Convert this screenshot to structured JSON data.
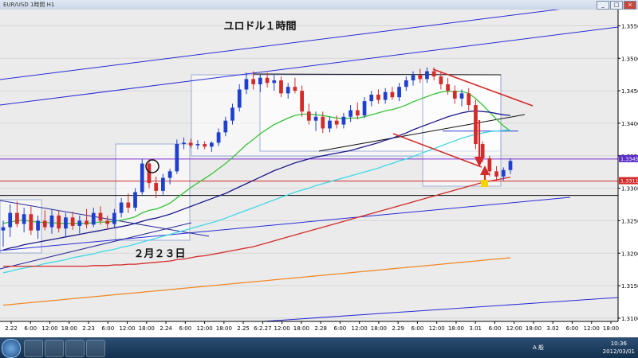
{
  "window": {
    "title": "EUR/USD 1時間 H1"
  },
  "chart_data": {
    "type": "candlestick",
    "title": "ユロドル１時間",
    "annotation": "２月２３日",
    "y_ticks": [
      "1.3550",
      "1.3500",
      "1.3450",
      "1.3400",
      "1.3350",
      "1.3300",
      "1.3250",
      "1.3200",
      "1.3150",
      "1.3100"
    ],
    "ylim": [
      1.3095,
      1.3575
    ],
    "x_ticks": [
      "2.22",
      "6:00",
      "12:00",
      "18:00",
      "2.23",
      "6:00",
      "12:00",
      "18:00",
      "2.24",
      "6:00",
      "12:00",
      "18:00",
      "2.25",
      "6:2.27",
      "12:00",
      "18:00",
      "2.28",
      "6:00",
      "12:00",
      "18:00",
      "2.29",
      "6:00",
      "12:00",
      "18:00",
      "3.01",
      "6:00",
      "12:00",
      "18:00",
      "3.02",
      "6:00",
      "12:00",
      "18:00"
    ],
    "price_tags": [
      {
        "value": "1.3345",
        "color": "#5b2fc7"
      },
      {
        "value": "1.3311",
        "color": "#d42a2a"
      }
    ],
    "horizontal_lines": [
      {
        "y": 1.3345,
        "color": "#7d2fd0"
      },
      {
        "y": 1.3311,
        "color": "#d42a2a"
      },
      {
        "y": 1.3289,
        "color": "#000000"
      },
      {
        "y": 1.3388,
        "color": "#2f3fd0"
      }
    ],
    "candles": [
      {
        "o": 1.3235,
        "h": 1.325,
        "l": 1.321,
        "c": 1.324
      },
      {
        "o": 1.324,
        "h": 1.3275,
        "l": 1.3225,
        "c": 1.3262
      },
      {
        "o": 1.3262,
        "h": 1.328,
        "l": 1.324,
        "c": 1.3245
      },
      {
        "o": 1.3245,
        "h": 1.327,
        "l": 1.3232,
        "c": 1.326
      },
      {
        "o": 1.326,
        "h": 1.3272,
        "l": 1.3228,
        "c": 1.3235
      },
      {
        "o": 1.3235,
        "h": 1.3258,
        "l": 1.3222,
        "c": 1.325
      },
      {
        "o": 1.325,
        "h": 1.3266,
        "l": 1.3235,
        "c": 1.324
      },
      {
        "o": 1.324,
        "h": 1.3268,
        "l": 1.323,
        "c": 1.3258
      },
      {
        "o": 1.3258,
        "h": 1.3266,
        "l": 1.3232,
        "c": 1.3238
      },
      {
        "o": 1.3238,
        "h": 1.3262,
        "l": 1.3225,
        "c": 1.3255
      },
      {
        "o": 1.3255,
        "h": 1.3264,
        "l": 1.3236,
        "c": 1.3242
      },
      {
        "o": 1.3242,
        "h": 1.3258,
        "l": 1.323,
        "c": 1.325
      },
      {
        "o": 1.325,
        "h": 1.3268,
        "l": 1.3238,
        "c": 1.3244
      },
      {
        "o": 1.3244,
        "h": 1.327,
        "l": 1.324,
        "c": 1.3262
      },
      {
        "o": 1.3262,
        "h": 1.3272,
        "l": 1.3244,
        "c": 1.325
      },
      {
        "o": 1.325,
        "h": 1.3258,
        "l": 1.3236,
        "c": 1.3245
      },
      {
        "o": 1.3245,
        "h": 1.3268,
        "l": 1.324,
        "c": 1.3262
      },
      {
        "o": 1.3262,
        "h": 1.3285,
        "l": 1.3255,
        "c": 1.3278
      },
      {
        "o": 1.3278,
        "h": 1.3292,
        "l": 1.3262,
        "c": 1.327
      },
      {
        "o": 1.327,
        "h": 1.33,
        "l": 1.3265,
        "c": 1.3294
      },
      {
        "o": 1.3294,
        "h": 1.3345,
        "l": 1.329,
        "c": 1.3338
      },
      {
        "o": 1.3338,
        "h": 1.3345,
        "l": 1.33,
        "c": 1.3308
      },
      {
        "o": 1.3308,
        "h": 1.3318,
        "l": 1.3285,
        "c": 1.3296
      },
      {
        "o": 1.3296,
        "h": 1.3322,
        "l": 1.329,
        "c": 1.3316
      },
      {
        "o": 1.3316,
        "h": 1.333,
        "l": 1.3306,
        "c": 1.3326
      },
      {
        "o": 1.3326,
        "h": 1.3375,
        "l": 1.3322,
        "c": 1.3368
      },
      {
        "o": 1.3368,
        "h": 1.3378,
        "l": 1.336,
        "c": 1.337
      },
      {
        "o": 1.337,
        "h": 1.3376,
        "l": 1.3362,
        "c": 1.3366
      },
      {
        "o": 1.3366,
        "h": 1.3374,
        "l": 1.336,
        "c": 1.3368
      },
      {
        "o": 1.3368,
        "h": 1.3372,
        "l": 1.336,
        "c": 1.3364
      },
      {
        "o": 1.3364,
        "h": 1.3372,
        "l": 1.3356,
        "c": 1.337
      },
      {
        "o": 1.337,
        "h": 1.3392,
        "l": 1.3365,
        "c": 1.3386
      },
      {
        "o": 1.3386,
        "h": 1.341,
        "l": 1.338,
        "c": 1.3404
      },
      {
        "o": 1.3404,
        "h": 1.343,
        "l": 1.3398,
        "c": 1.3424
      },
      {
        "o": 1.3424,
        "h": 1.346,
        "l": 1.3418,
        "c": 1.3452
      },
      {
        "o": 1.3452,
        "h": 1.3478,
        "l": 1.3445,
        "c": 1.3468
      },
      {
        "o": 1.3468,
        "h": 1.348,
        "l": 1.3452,
        "c": 1.346
      },
      {
        "o": 1.346,
        "h": 1.3475,
        "l": 1.3448,
        "c": 1.347
      },
      {
        "o": 1.347,
        "h": 1.3478,
        "l": 1.3455,
        "c": 1.3462
      },
      {
        "o": 1.3462,
        "h": 1.3474,
        "l": 1.345,
        "c": 1.3466
      },
      {
        "o": 1.3466,
        "h": 1.3472,
        "l": 1.344,
        "c": 1.3446
      },
      {
        "o": 1.3446,
        "h": 1.3462,
        "l": 1.3438,
        "c": 1.3456
      },
      {
        "o": 1.3456,
        "h": 1.347,
        "l": 1.3446,
        "c": 1.345
      },
      {
        "o": 1.345,
        "h": 1.3458,
        "l": 1.341,
        "c": 1.3418
      },
      {
        "o": 1.3418,
        "h": 1.343,
        "l": 1.3398,
        "c": 1.3404
      },
      {
        "o": 1.3404,
        "h": 1.3418,
        "l": 1.3388,
        "c": 1.341
      },
      {
        "o": 1.341,
        "h": 1.3418,
        "l": 1.3385,
        "c": 1.3392
      },
      {
        "o": 1.3392,
        "h": 1.341,
        "l": 1.3386,
        "c": 1.3404
      },
      {
        "o": 1.3404,
        "h": 1.3412,
        "l": 1.3392,
        "c": 1.3398
      },
      {
        "o": 1.3398,
        "h": 1.3416,
        "l": 1.3392,
        "c": 1.341
      },
      {
        "o": 1.341,
        "h": 1.3428,
        "l": 1.3402,
        "c": 1.342
      },
      {
        "o": 1.342,
        "h": 1.3432,
        "l": 1.3406,
        "c": 1.3412
      },
      {
        "o": 1.3412,
        "h": 1.344,
        "l": 1.3408,
        "c": 1.3434
      },
      {
        "o": 1.3434,
        "h": 1.345,
        "l": 1.3426,
        "c": 1.3444
      },
      {
        "o": 1.3444,
        "h": 1.3452,
        "l": 1.343,
        "c": 1.3436
      },
      {
        "o": 1.3436,
        "h": 1.3454,
        "l": 1.343,
        "c": 1.3448
      },
      {
        "o": 1.3448,
        "h": 1.3456,
        "l": 1.3436,
        "c": 1.344
      },
      {
        "o": 1.344,
        "h": 1.3462,
        "l": 1.3434,
        "c": 1.3456
      },
      {
        "o": 1.3456,
        "h": 1.3472,
        "l": 1.345,
        "c": 1.3466
      },
      {
        "o": 1.3466,
        "h": 1.348,
        "l": 1.3458,
        "c": 1.3474
      },
      {
        "o": 1.3474,
        "h": 1.3484,
        "l": 1.3462,
        "c": 1.3468
      },
      {
        "o": 1.3468,
        "h": 1.3486,
        "l": 1.3462,
        "c": 1.348
      },
      {
        "o": 1.348,
        "h": 1.3486,
        "l": 1.3466,
        "c": 1.3472
      },
      {
        "o": 1.3472,
        "h": 1.348,
        "l": 1.3452,
        "c": 1.346
      },
      {
        "o": 1.346,
        "h": 1.347,
        "l": 1.3444,
        "c": 1.345
      },
      {
        "o": 1.345,
        "h": 1.3458,
        "l": 1.343,
        "c": 1.3438
      },
      {
        "o": 1.3438,
        "h": 1.3452,
        "l": 1.3426,
        "c": 1.3446
      },
      {
        "o": 1.3446,
        "h": 1.3454,
        "l": 1.342,
        "c": 1.3428
      },
      {
        "o": 1.3428,
        "h": 1.3436,
        "l": 1.336,
        "c": 1.3368
      },
      {
        "o": 1.3368,
        "h": 1.3372,
        "l": 1.334,
        "c": 1.3346
      },
      {
        "o": 1.3346,
        "h": 1.335,
        "l": 1.3318,
        "c": 1.3326
      },
      {
        "o": 1.3326,
        "h": 1.3334,
        "l": 1.3312,
        "c": 1.3318
      },
      {
        "o": 1.3318,
        "h": 1.3332,
        "l": 1.3312,
        "c": 1.3328
      },
      {
        "o": 1.3328,
        "h": 1.3346,
        "l": 1.3322,
        "c": 1.3342
      }
    ],
    "moving_averages": [
      {
        "color": "#37c337",
        "values": [
          1.3246,
          1.3248,
          1.325,
          1.3251,
          1.3249,
          1.3248,
          1.3247,
          1.3247,
          1.3246,
          1.3246,
          1.3246,
          1.3246,
          1.3246,
          1.3247,
          1.3248,
          1.3248,
          1.3249,
          1.3251,
          1.3253,
          1.3256,
          1.3262,
          1.3266,
          1.3268,
          1.3272,
          1.3277,
          1.3285,
          1.3293,
          1.3301,
          1.3308,
          1.3315,
          1.3322,
          1.333,
          1.3338,
          1.3347,
          1.3357,
          1.3367,
          1.3375,
          1.3384,
          1.3391,
          1.3398,
          1.3403,
          1.3408,
          1.3412,
          1.3414,
          1.3414,
          1.3413,
          1.3412,
          1.341,
          1.3408,
          1.3407,
          1.3408,
          1.3408,
          1.341,
          1.3413,
          1.3416,
          1.3419,
          1.3421,
          1.3424,
          1.3428,
          1.3433,
          1.3437,
          1.3441,
          1.3445,
          1.3448,
          1.3449,
          1.3449,
          1.3449,
          1.3446,
          1.3438,
          1.3428,
          1.3417,
          1.3406,
          1.3396,
          1.3388
        ]
      },
      {
        "color": "#1a1a8c",
        "values": [
          1.3205,
          1.3208,
          1.321,
          1.3213,
          1.3215,
          1.3217,
          1.3219,
          1.3221,
          1.3223,
          1.3225,
          1.3227,
          1.3229,
          1.3231,
          1.3233,
          1.3235,
          1.3237,
          1.3239,
          1.3241,
          1.3243,
          1.3246,
          1.3249,
          1.3252,
          1.3254,
          1.3257,
          1.326,
          1.3264,
          1.3268,
          1.3272,
          1.3276,
          1.328,
          1.3284,
          1.3288,
          1.3292,
          1.3297,
          1.3302,
          1.3307,
          1.3312,
          1.3317,
          1.3322,
          1.3327,
          1.3331,
          1.3335,
          1.3339,
          1.3342,
          1.3345,
          1.3348,
          1.335,
          1.3352,
          1.3354,
          1.3356,
          1.3358,
          1.3361,
          1.3364,
          1.3367,
          1.337,
          1.3374,
          1.3377,
          1.3381,
          1.3385,
          1.339,
          1.3394,
          1.3398,
          1.3402,
          1.3406,
          1.341,
          1.3413,
          1.3416,
          1.3418,
          1.3419,
          1.3418,
          1.3417,
          1.3415,
          1.3413,
          1.3412
        ]
      },
      {
        "color": "#3fd9e6",
        "values": [
          1.317,
          1.3172,
          1.3175,
          1.3177,
          1.3179,
          1.3181,
          1.3184,
          1.3186,
          1.3188,
          1.319,
          1.3193,
          1.3195,
          1.3197,
          1.3199,
          1.3202,
          1.3204,
          1.3206,
          1.3209,
          1.3211,
          1.3214,
          1.3217,
          1.322,
          1.3223,
          1.3226,
          1.3229,
          1.3232,
          1.3235,
          1.3238,
          1.3241,
          1.3244,
          1.3247,
          1.325,
          1.3254,
          1.3258,
          1.3262,
          1.3266,
          1.327,
          1.3274,
          1.3278,
          1.3282,
          1.3286,
          1.329,
          1.3294,
          1.3297,
          1.33,
          1.3304,
          1.3307,
          1.331,
          1.3313,
          1.3316,
          1.3319,
          1.3322,
          1.3325,
          1.3328,
          1.3331,
          1.3335,
          1.3338,
          1.3342,
          1.3345,
          1.3349,
          1.3353,
          1.3357,
          1.3361,
          1.3365,
          1.3369,
          1.3373,
          1.3377,
          1.338,
          1.3383,
          1.3385,
          1.3387,
          1.3388,
          1.3389,
          1.339
        ]
      },
      {
        "color": "#d42a2a",
        "values": [
          1.318,
          1.318,
          1.318,
          1.318,
          1.318,
          1.318,
          1.318,
          1.318,
          1.318,
          1.318,
          1.318,
          1.318,
          1.318,
          1.3181,
          1.3181,
          1.3181,
          1.3182,
          1.3182,
          1.3183,
          1.3183,
          1.3184,
          1.3185,
          1.3186,
          1.3187,
          1.3188,
          1.319,
          1.3191,
          1.3193,
          1.3195,
          1.3196,
          1.3198,
          1.32,
          1.3202,
          1.3204,
          1.3206,
          1.3208,
          1.321,
          1.3213,
          1.3216,
          1.3219,
          1.3222,
          1.3225,
          1.3228,
          1.3231,
          1.3234,
          1.3237,
          1.324,
          1.3243,
          1.3246,
          1.3249,
          1.3252,
          1.3255,
          1.3258,
          1.3261,
          1.3264,
          1.3267,
          1.327,
          1.3273,
          1.3276,
          1.3279,
          1.3282,
          1.3285,
          1.3288,
          1.3291,
          1.3294,
          1.3297,
          1.33,
          1.3303,
          1.3306,
          1.3309,
          1.3311,
          1.3313,
          1.3315,
          1.3317
        ]
      },
      {
        "color": "#f08a2a",
        "values": [
          1.312,
          1.3121,
          1.3122,
          1.3123,
          1.3124,
          1.3125,
          1.3126,
          1.3127,
          1.3128,
          1.3129,
          1.313,
          1.3131,
          1.3132,
          1.3133,
          1.3134,
          1.3135,
          1.3136,
          1.3137,
          1.3138,
          1.3139,
          1.314,
          1.3141,
          1.3142,
          1.3143,
          1.3144,
          1.3145,
          1.3146,
          1.3147,
          1.3148,
          1.3149,
          1.315,
          1.3151,
          1.3152,
          1.3153,
          1.3154,
          1.3155,
          1.3156,
          1.3157,
          1.3158,
          1.3159,
          1.316,
          1.3161,
          1.3162,
          1.3163,
          1.3164,
          1.3165,
          1.3166,
          1.3167,
          1.3168,
          1.3169,
          1.317,
          1.3171,
          1.3172,
          1.3173,
          1.3174,
          1.3175,
          1.3176,
          1.3177,
          1.3178,
          1.3179,
          1.318,
          1.3181,
          1.3182,
          1.3183,
          1.3184,
          1.3185,
          1.3186,
          1.3187,
          1.3188,
          1.3189,
          1.319,
          1.3191,
          1.3192,
          1.3193
        ]
      }
    ]
  },
  "taskbar": {
    "clock_time": "10:36",
    "clock_date": "2012/03/01",
    "ime_label": "A 般"
  }
}
